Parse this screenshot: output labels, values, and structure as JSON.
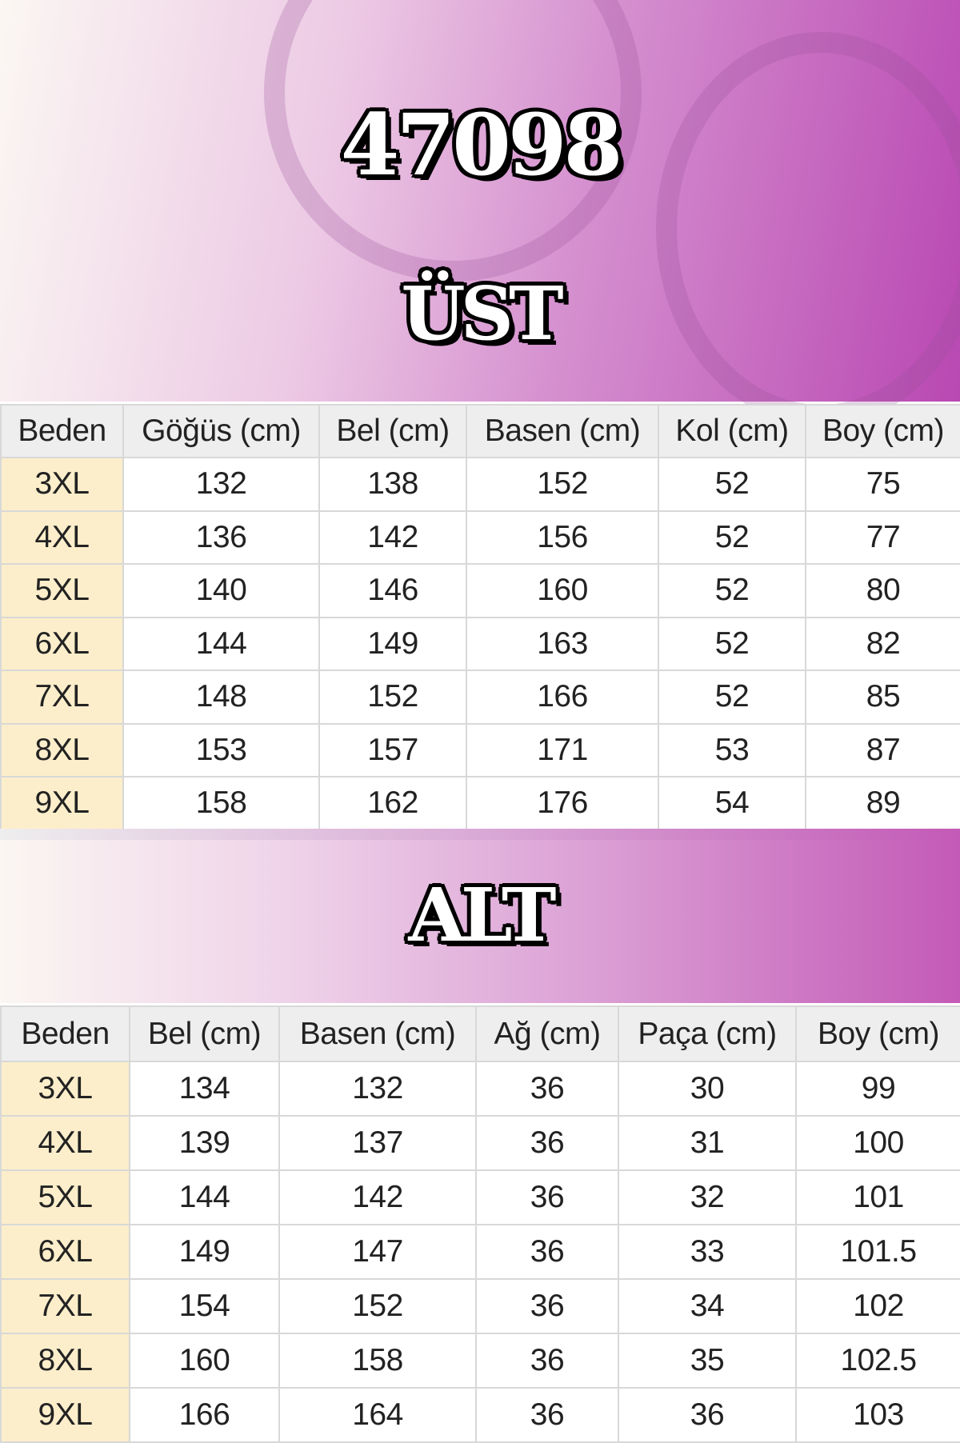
{
  "product_code": "47098",
  "top_section": {
    "title": "ÜST",
    "headers": [
      "Beden",
      "Göğüs (cm)",
      "Bel (cm)",
      "Basen (cm)",
      "Kol (cm)",
      "Boy (cm)"
    ],
    "rows": [
      [
        "3XL",
        "132",
        "138",
        "152",
        "52",
        "75"
      ],
      [
        "4XL",
        "136",
        "142",
        "156",
        "52",
        "77"
      ],
      [
        "5XL",
        "140",
        "146",
        "160",
        "52",
        "80"
      ],
      [
        "6XL",
        "144",
        "149",
        "163",
        "52",
        "82"
      ],
      [
        "7XL",
        "148",
        "152",
        "166",
        "52",
        "85"
      ],
      [
        "8XL",
        "153",
        "157",
        "171",
        "53",
        "87"
      ],
      [
        "9XL",
        "158",
        "162",
        "176",
        "54",
        "89"
      ]
    ]
  },
  "bottom_section": {
    "title": "ALT",
    "headers": [
      "Beden",
      "Bel (cm)",
      "Basen (cm)",
      "Ağ (cm)",
      "Paça (cm)",
      "Boy (cm)"
    ],
    "rows": [
      [
        "3XL",
        "134",
        "132",
        "36",
        "30",
        "99"
      ],
      [
        "4XL",
        "139",
        "137",
        "36",
        "31",
        "100"
      ],
      [
        "5XL",
        "144",
        "142",
        "36",
        "32",
        "101"
      ],
      [
        "6XL",
        "149",
        "147",
        "36",
        "33",
        "101.5"
      ],
      [
        "7XL",
        "154",
        "152",
        "36",
        "34",
        "102"
      ],
      [
        "8XL",
        "160",
        "158",
        "36",
        "35",
        "102.5"
      ],
      [
        "9XL",
        "166",
        "164",
        "36",
        "36",
        "103"
      ]
    ]
  },
  "colors": {
    "accent": "#c35ab7",
    "size_cell": "#fdeecb",
    "header_cell": "#eeeeee"
  }
}
